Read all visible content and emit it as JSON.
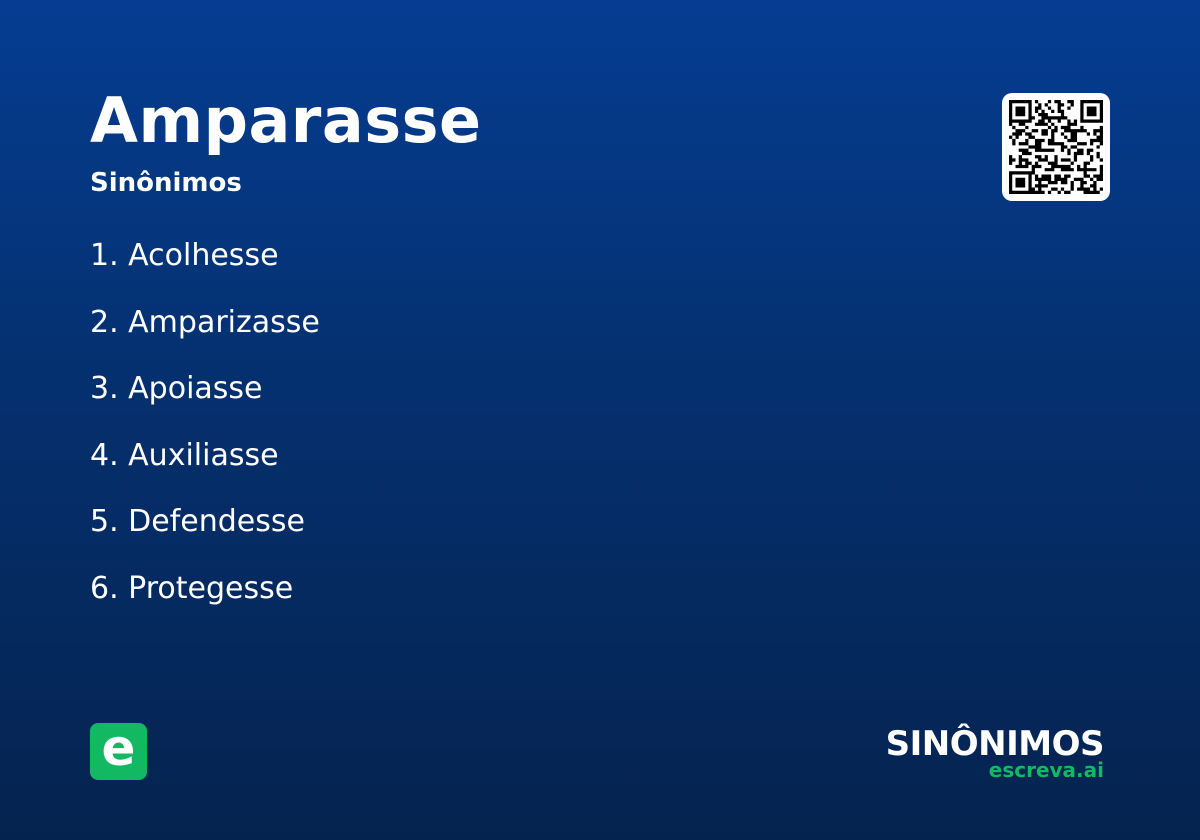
{
  "header": {
    "title": "Amparasse",
    "subtitle": "Sinônimos"
  },
  "synonyms": [
    "1. Acolhesse",
    "2. Amparizasse",
    "3. Apoiasse",
    "4. Auxiliasse",
    "5. Defendesse",
    "6. Protegesse"
  ],
  "logo": {
    "letter": "e",
    "color": "#12b862"
  },
  "brand": {
    "name": "SINÔNIMOS",
    "site": "escreva.ai"
  },
  "qr_icon": "qr-code-icon",
  "colors": {
    "bg_top": "#053d92",
    "bg_bottom": "#05234f",
    "accent": "#12b862"
  }
}
